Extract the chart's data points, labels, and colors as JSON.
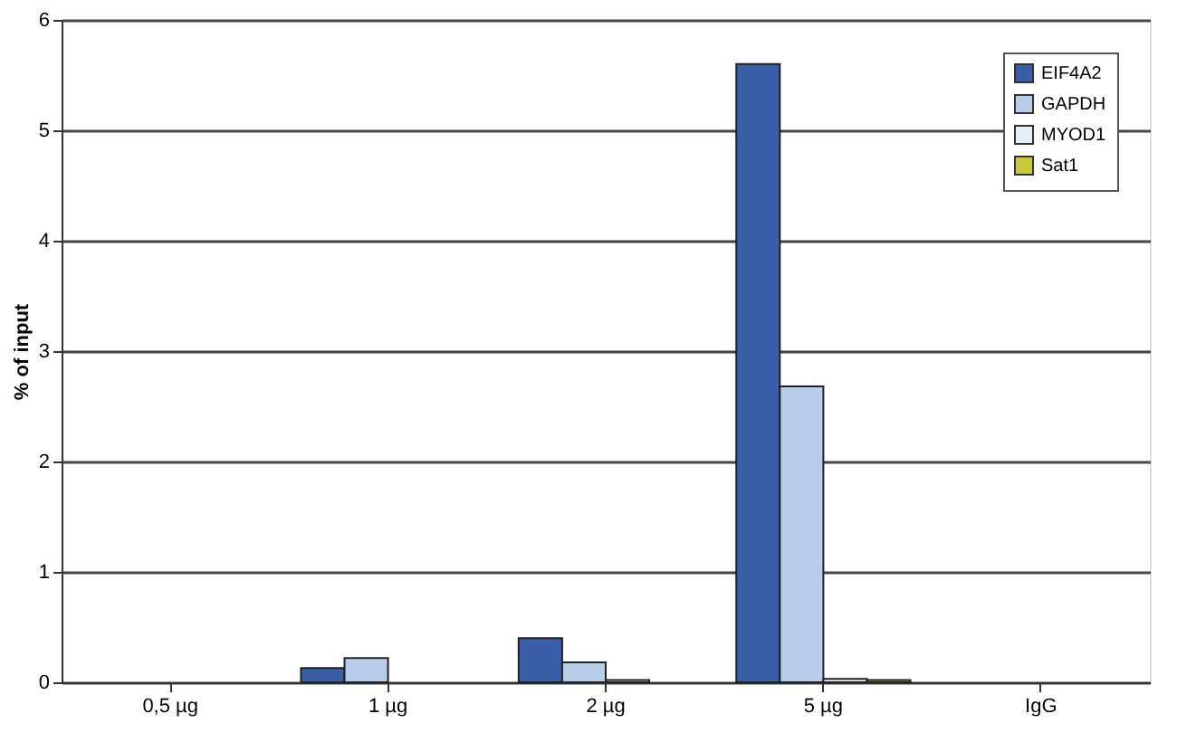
{
  "chart_data": {
    "type": "bar",
    "ylabel": "% of input",
    "categories": [
      "0,5 µg",
      "1 µg",
      "2 µg",
      "5 µg",
      "IgG"
    ],
    "series": [
      {
        "name": "EIF4A2",
        "color": "#3a5ea8",
        "values": [
          null,
          0.13,
          0.4,
          5.6,
          null
        ]
      },
      {
        "name": "GAPDH",
        "color": "#b8cde8",
        "values": [
          null,
          0.22,
          0.18,
          2.68,
          null
        ]
      },
      {
        "name": "MYOD1",
        "color": "#e8eef6",
        "values": [
          null,
          null,
          0.02,
          0.03,
          null
        ]
      },
      {
        "name": "Sat1",
        "color": "#c8c840",
        "values": [
          null,
          null,
          null,
          0.02,
          null
        ]
      }
    ],
    "ylim": [
      0,
      6
    ],
    "yticks": [
      0,
      1,
      2,
      3,
      4,
      5,
      6
    ],
    "grid": "y",
    "legend": "top right"
  }
}
